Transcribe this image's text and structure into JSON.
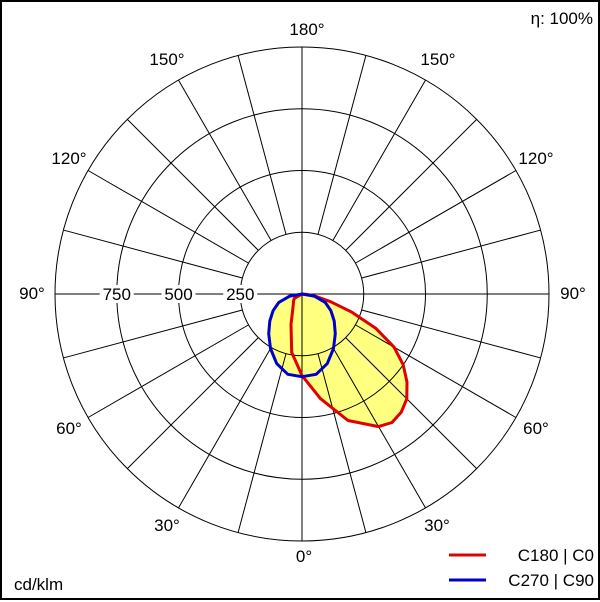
{
  "chart_data": {
    "type": "polar",
    "unit_label": "cd/klm",
    "efficiency": "η: 100%",
    "radial_ticks": [
      250,
      500,
      750
    ],
    "radial_max": 1000,
    "angle_labels": {
      "bottom": "0°",
      "top": "180°",
      "left": "90°",
      "right": "90°",
      "left_30": "30°",
      "right_30": "30°",
      "left_60": "60°",
      "right_60": "60°",
      "left_120": "120°",
      "right_120": "120°",
      "left_150": "150°",
      "right_150": "150°"
    },
    "grid": true,
    "fill_color": "#ffff80",
    "series": [
      {
        "name": "C180 | C0",
        "color": "#e00000",
        "points": [
          [
            -60,
            36
          ],
          [
            -50,
            45
          ],
          [
            -40,
            55
          ],
          [
            -30,
            75
          ],
          [
            -20,
            130
          ],
          [
            -10,
            240
          ],
          [
            0,
            330
          ],
          [
            10,
            430
          ],
          [
            20,
            545
          ],
          [
            30,
            620
          ],
          [
            35,
            635
          ],
          [
            40,
            625
          ],
          [
            45,
            600
          ],
          [
            50,
            555
          ],
          [
            55,
            500
          ],
          [
            60,
            430
          ],
          [
            65,
            330
          ],
          [
            70,
            215
          ],
          [
            75,
            120
          ],
          [
            80,
            60
          ],
          [
            85,
            20
          ],
          [
            90,
            0
          ]
        ]
      },
      {
        "name": "C270 | C90",
        "color": "#0000cc",
        "points": [
          [
            -90,
            0
          ],
          [
            -80,
            50
          ],
          [
            -70,
            100
          ],
          [
            -60,
            135
          ],
          [
            -50,
            170
          ],
          [
            -40,
            210
          ],
          [
            -30,
            255
          ],
          [
            -20,
            300
          ],
          [
            -10,
            330
          ],
          [
            0,
            335
          ],
          [
            10,
            330
          ],
          [
            20,
            300
          ],
          [
            30,
            255
          ],
          [
            40,
            210
          ],
          [
            50,
            170
          ],
          [
            60,
            135
          ],
          [
            70,
            100
          ],
          [
            80,
            50
          ],
          [
            90,
            0
          ]
        ]
      }
    ],
    "legend": "bottom-right"
  }
}
